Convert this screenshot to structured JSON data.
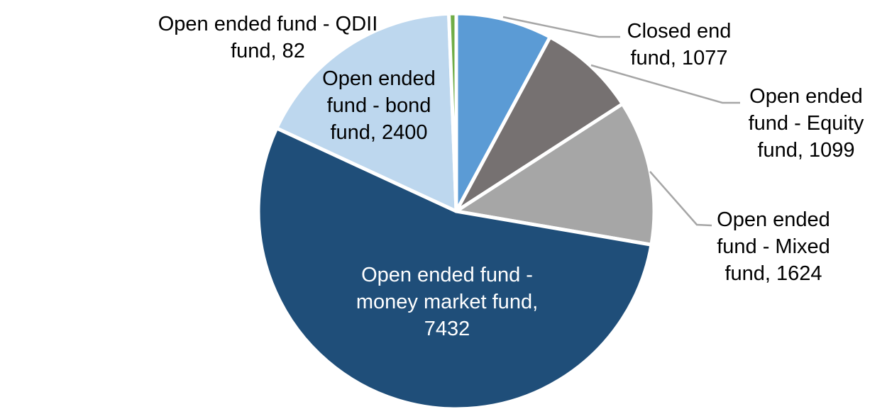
{
  "chart_data": {
    "type": "pie",
    "title": "",
    "total": 13714,
    "start_angle_deg": 0,
    "direction": "clockwise",
    "background_color": "#FFFFFF",
    "separator_color": "#FFFFFF",
    "leader_line_color": "#A6A6A6",
    "legend": "none",
    "slices": [
      {
        "name": "Closed end fund",
        "value": 1077,
        "color": "#5B9BD5",
        "label_lines": [
          "Closed end",
          "fund, 1077"
        ],
        "label_text_color": "#000000",
        "label_position": "outside",
        "leader_line": true
      },
      {
        "name": "Open ended fund - Equity fund",
        "value": 1099,
        "color": "#767171",
        "label_lines": [
          "Open ended",
          "fund - Equity",
          "fund, 1099"
        ],
        "label_text_color": "#000000",
        "label_position": "outside",
        "leader_line": true
      },
      {
        "name": "Open ended fund - Mixed fund",
        "value": 1624,
        "color": "#A6A6A6",
        "label_lines": [
          "Open ended",
          "fund - Mixed",
          "fund, 1624"
        ],
        "label_text_color": "#000000",
        "label_position": "outside",
        "leader_line": true
      },
      {
        "name": "Open ended fund - money market fund",
        "value": 7432,
        "color": "#1F4E79",
        "label_lines": [
          "Open ended fund -",
          "money market fund,",
          "7432"
        ],
        "label_text_color": "#FFFFFF",
        "label_position": "inside",
        "leader_line": false
      },
      {
        "name": "Open ended fund - bond fund",
        "value": 2400,
        "color": "#BDD7EE",
        "label_lines": [
          "Open ended",
          "fund - bond",
          "fund, 2400"
        ],
        "label_text_color": "#000000",
        "label_position": "inside",
        "leader_line": false
      },
      {
        "name": "Open ended fund - QDII fund",
        "value": 82,
        "color": "#70AD47",
        "label_lines": [
          "Open ended fund - QDII",
          "fund, 82"
        ],
        "label_text_color": "#000000",
        "label_position": "outside",
        "leader_line": false
      }
    ]
  }
}
